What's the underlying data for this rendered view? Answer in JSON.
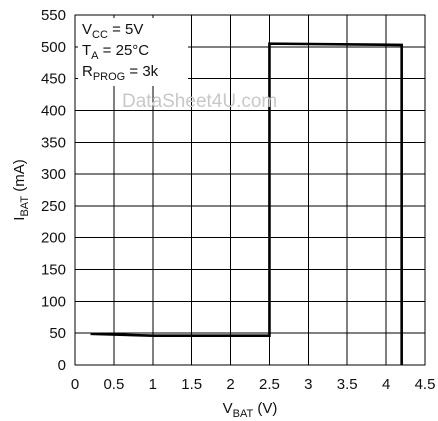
{
  "chart_data": {
    "type": "line",
    "xlabel": {
      "main": "V",
      "sub": "BAT",
      "unit": " (V)"
    },
    "ylabel": {
      "main": "I",
      "sub": "BAT",
      "unit": " (mA)"
    },
    "xlim": [
      0,
      4.5
    ],
    "ylim": [
      0,
      550
    ],
    "x_ticks": [
      0,
      0.5,
      1,
      1.5,
      2,
      2.5,
      3,
      3.5,
      4,
      4.5
    ],
    "x_tick_labels": [
      "0",
      "0.5",
      "1",
      "1.5",
      "2",
      "2.5",
      "3",
      "3.5",
      "4",
      "4.5"
    ],
    "y_ticks": [
      0,
      50,
      100,
      150,
      200,
      250,
      300,
      350,
      400,
      450,
      500,
      550
    ],
    "y_tick_labels": [
      "0",
      "50",
      "100",
      "150",
      "200",
      "250",
      "300",
      "350",
      "400",
      "450",
      "500",
      "550"
    ],
    "grid": true,
    "series": [
      {
        "x": [
          0.2,
          1.0,
          2.5,
          2.5,
          4.2,
          4.2
        ],
        "y": [
          49,
          46,
          46,
          505,
          503,
          0
        ],
        "color": "#000000"
      }
    ],
    "annotations": [
      {
        "main": "V",
        "sub": "CC",
        "rest": " = 5V"
      },
      {
        "main": "T",
        "sub": "A",
        "rest": " = 25°C"
      },
      {
        "main": "R",
        "sub": "PROG",
        "rest": " = 3k"
      }
    ],
    "watermark": "DataSheet4U.com"
  }
}
